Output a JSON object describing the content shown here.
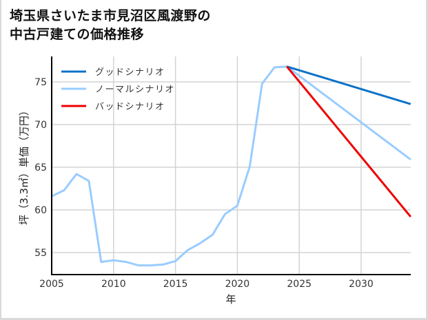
{
  "title_line1": "埼玉県さいたま市見沼区風渡野の",
  "title_line2": "中古戸建ての価格推移",
  "chart_data": {
    "type": "line",
    "title": "埼玉県さいたま市見沼区風渡野の中古戸建ての価格推移",
    "xlabel": "年",
    "ylabel": "坪（3.3㎡）単価（万円）",
    "xlim": [
      2005,
      2034
    ],
    "ylim": [
      52.5,
      78
    ],
    "xticks": [
      2005,
      2010,
      2015,
      2020,
      2025,
      2030
    ],
    "yticks": [
      55,
      60,
      65,
      70,
      75
    ],
    "grid": true,
    "legend_position": "upper left",
    "series": [
      {
        "name": "グッドシナリオ",
        "color": "#0a72c8",
        "x": [
          2024,
          2034
        ],
        "values": [
          76.8,
          72.4
        ]
      },
      {
        "name": "ノーマルシナリオ",
        "color": "#99ccff",
        "x": [
          2005,
          2006,
          2007,
          2008,
          2009,
          2010,
          2011,
          2012,
          2013,
          2014,
          2015,
          2016,
          2017,
          2018,
          2019,
          2020,
          2021,
          2022,
          2023,
          2024,
          2034
        ],
        "values": [
          61.6,
          62.3,
          64.2,
          63.4,
          53.9,
          54.1,
          53.9,
          53.5,
          53.5,
          53.6,
          54.0,
          55.3,
          56.1,
          57.1,
          59.5,
          60.5,
          65.1,
          74.8,
          76.7,
          76.8,
          65.9
        ]
      },
      {
        "name": "バッドシナリオ",
        "color": "#ee0000",
        "x": [
          2024,
          2034
        ],
        "values": [
          76.8,
          59.2
        ]
      }
    ]
  }
}
